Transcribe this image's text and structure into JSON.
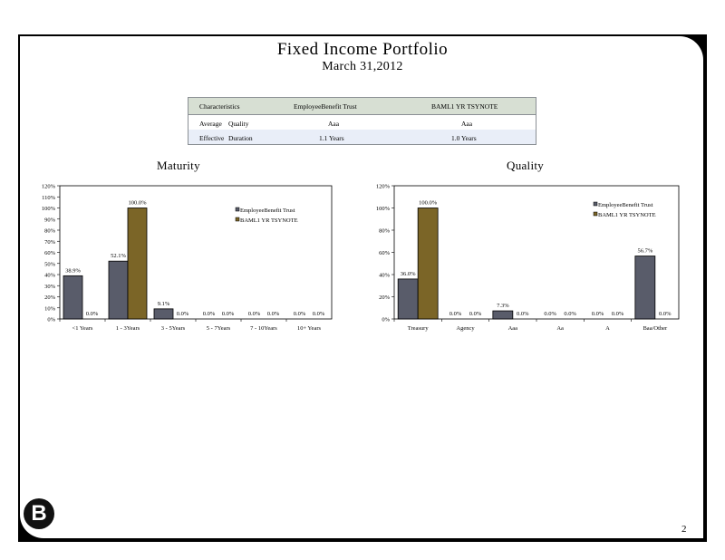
{
  "title": "Fixed Income Portfolio",
  "subtitle": "March 31,2012",
  "table": {
    "headers": [
      "Characteristics",
      "EmployeeBenefit Trust",
      "BAML1 YR TSYNOTE"
    ],
    "rows": [
      {
        "c1": "Average",
        "c2": "Quality",
        "v1": "Aaa",
        "v2": "Aaa"
      },
      {
        "c1": "Effective",
        "c2": "Duration",
        "v1": "1.1 Years",
        "v2": "1.0 Years"
      }
    ]
  },
  "colors": {
    "series1": "#595c6a",
    "series2": "#7b6527",
    "table_header": "#d7dfd3",
    "table_row": "#e9eef8"
  },
  "page_number": "2",
  "logo_letter": "B",
  "chart_data": [
    {
      "type": "bar",
      "title": "Maturity",
      "categories": [
        "<1 Years",
        "1 - 3Years",
        "3 - 5Years",
        "5 - 7Years",
        "7 - 10Years",
        "10+ Years"
      ],
      "series": [
        {
          "name": "EmployeeBenefit Trust",
          "values": [
            38.9,
            52.1,
            9.1,
            0.0,
            0.0,
            0.0
          ],
          "labels": [
            "38.9%",
            "52.1%",
            "9.1%",
            "0.0%",
            "0.0%",
            "0.0%"
          ]
        },
        {
          "name": "BAML1 YR TSYNOTE",
          "values": [
            0.0,
            100.0,
            0.0,
            0.0,
            0.0,
            0.0
          ],
          "labels": [
            "0.0%",
            "100.0%",
            "0.0%",
            "0.0%",
            "0.0%",
            "0.0%"
          ]
        }
      ],
      "ylim": [
        0,
        120
      ],
      "yticks": [
        "0%",
        "10%",
        "20%",
        "30%",
        "40%",
        "50%",
        "60%",
        "70%",
        "80%",
        "90%",
        "100%",
        "110%",
        "120%"
      ],
      "legend": "top-right"
    },
    {
      "type": "bar",
      "title": "Quality",
      "categories": [
        "Treasury",
        "Agency",
        "Aaa",
        "Aa",
        "A",
        "Baa/Other"
      ],
      "series": [
        {
          "name": "EmployeeBenefit Trust",
          "values": [
            36.0,
            0.0,
            7.3,
            0.0,
            0.0,
            56.7
          ],
          "labels": [
            "36.0%",
            "0.0%",
            "7.3%",
            "0.0%",
            "0.0%",
            "56.7%"
          ]
        },
        {
          "name": "BAML1 YR TSYNOTE",
          "values": [
            100.0,
            0.0,
            0.0,
            0.0,
            0.0,
            0.0
          ],
          "labels": [
            "100.0%",
            "0.0%",
            "0.0%",
            "0.0%",
            "0.0%",
            "0.0%"
          ]
        }
      ],
      "ylim": [
        0,
        120
      ],
      "yticks": [
        "0%",
        "20%",
        "40%",
        "60%",
        "80%",
        "100%",
        "120%"
      ],
      "legend": "top-right"
    }
  ]
}
